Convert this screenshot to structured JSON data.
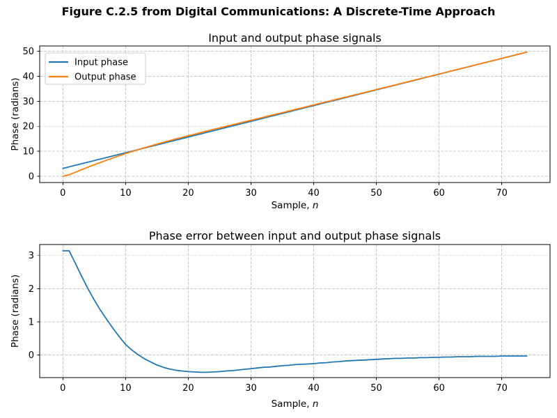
{
  "figure": {
    "suptitle": "Figure C.2.5 from Digital Communications: A Discrete-Time Approach",
    "background": "#ffffff"
  },
  "style": {
    "accent_blue": "#1f77b4",
    "accent_orange": "#ff7f0e",
    "grid_color": "#c8c8c8",
    "axis_color": "#000000"
  },
  "chart_data": [
    {
      "type": "line",
      "title": "Input and output phase signals",
      "xlabel_prefix": "Sample, ",
      "xlabel_var": "n",
      "ylabel": "Phase (radians)",
      "xlim": [
        -3.7,
        77.7
      ],
      "ylim": [
        -2.48,
        52.08
      ],
      "xticks": [
        0,
        10,
        20,
        30,
        40,
        50,
        60,
        70
      ],
      "yticks": [
        0,
        10,
        20,
        30,
        40,
        50
      ],
      "grid": true,
      "legend": {
        "position": "upper-left",
        "entries": [
          "Input phase",
          "Output phase"
        ]
      },
      "x": [
        0,
        1,
        2,
        3,
        4,
        5,
        6,
        7,
        8,
        9,
        10,
        11,
        12,
        13,
        14,
        15,
        16,
        17,
        18,
        19,
        20,
        21,
        22,
        23,
        24,
        25,
        26,
        27,
        28,
        29,
        30,
        31,
        32,
        33,
        34,
        35,
        36,
        37,
        38,
        39,
        40,
        41,
        42,
        43,
        44,
        45,
        46,
        47,
        48,
        49,
        50,
        51,
        52,
        53,
        54,
        55,
        56,
        57,
        58,
        59,
        60,
        61,
        62,
        63,
        64,
        65,
        66,
        67,
        68,
        69,
        70,
        71,
        72,
        73,
        74
      ],
      "series": [
        {
          "name": "Input phase",
          "color": "#1f77b4",
          "values": [
            3.14,
            3.77,
            4.4,
            5.03,
            5.65,
            6.28,
            6.91,
            7.54,
            8.17,
            8.79,
            9.42,
            10.05,
            10.68,
            11.31,
            11.93,
            12.56,
            13.19,
            13.82,
            14.45,
            15.07,
            15.7,
            16.33,
            16.96,
            17.59,
            18.21,
            18.84,
            19.47,
            20.1,
            20.73,
            21.35,
            21.98,
            22.61,
            23.24,
            23.87,
            24.49,
            25.12,
            25.75,
            26.38,
            27.01,
            27.63,
            28.26,
            28.89,
            29.52,
            30.15,
            30.77,
            31.4,
            32.03,
            32.66,
            33.29,
            33.91,
            34.54,
            35.17,
            35.8,
            36.43,
            37.05,
            37.68,
            38.31,
            38.94,
            39.57,
            40.19,
            40.82,
            41.45,
            42.08,
            42.71,
            43.33,
            43.96,
            44.59,
            45.22,
            45.85,
            46.47,
            47.1,
            47.73,
            48.36,
            48.99,
            49.61
          ]
        },
        {
          "name": "Output phase",
          "color": "#ff7f0e",
          "values": [
            0.0,
            0.63,
            1.64,
            2.66,
            3.65,
            4.62,
            5.56,
            6.47,
            7.37,
            8.24,
            9.1,
            9.9,
            10.67,
            11.42,
            12.14,
            12.86,
            13.56,
            14.24,
            14.91,
            15.55,
            16.2,
            16.84,
            17.48,
            18.11,
            18.72,
            19.34,
            19.95,
            20.57,
            21.18,
            21.78,
            22.39,
            23.0,
            23.61,
            24.23,
            24.83,
            25.44,
            26.06,
            26.67,
            27.29,
            27.9,
            28.52,
            29.13,
            29.75,
            30.36,
            30.97,
            31.58,
            32.2,
            32.82,
            33.44,
            34.05,
            34.67,
            35.29,
            35.91,
            36.53,
            37.15,
            37.77,
            38.4,
            39.02,
            39.65,
            40.26,
            40.89,
            41.51,
            42.14,
            42.76,
            43.38,
            44.01,
            44.63,
            45.26,
            45.89,
            46.51,
            47.13,
            47.76,
            48.39,
            49.02,
            49.64
          ]
        }
      ]
    },
    {
      "type": "line",
      "title": "Phase error between input and output phase signals",
      "xlabel_prefix": "Sample, ",
      "xlabel_var": "n",
      "ylabel": "Phase (radians)",
      "xlim": [
        -3.7,
        77.7
      ],
      "ylim": [
        -0.68,
        3.33
      ],
      "xticks": [
        0,
        10,
        20,
        30,
        40,
        50,
        60,
        70
      ],
      "yticks": [
        0,
        1,
        2,
        3
      ],
      "grid": true,
      "x": [
        0,
        1,
        2,
        3,
        4,
        5,
        6,
        7,
        8,
        9,
        10,
        11,
        12,
        13,
        14,
        15,
        16,
        17,
        18,
        19,
        20,
        21,
        22,
        23,
        24,
        25,
        26,
        27,
        28,
        29,
        30,
        31,
        32,
        33,
        34,
        35,
        36,
        37,
        38,
        39,
        40,
        41,
        42,
        43,
        44,
        45,
        46,
        47,
        48,
        49,
        50,
        51,
        52,
        53,
        54,
        55,
        56,
        57,
        58,
        59,
        60,
        61,
        62,
        63,
        64,
        65,
        66,
        67,
        68,
        69,
        70,
        71,
        72,
        73,
        74
      ],
      "series": [
        {
          "name": "Phase error",
          "color": "#1f77b4",
          "values": [
            3.14,
            3.14,
            2.76,
            2.37,
            2.0,
            1.66,
            1.35,
            1.07,
            0.8,
            0.55,
            0.32,
            0.15,
            0.01,
            -0.11,
            -0.21,
            -0.3,
            -0.37,
            -0.42,
            -0.46,
            -0.48,
            -0.5,
            -0.51,
            -0.52,
            -0.52,
            -0.51,
            -0.5,
            -0.48,
            -0.47,
            -0.45,
            -0.43,
            -0.41,
            -0.39,
            -0.37,
            -0.36,
            -0.34,
            -0.32,
            -0.31,
            -0.29,
            -0.28,
            -0.27,
            -0.26,
            -0.24,
            -0.23,
            -0.21,
            -0.2,
            -0.18,
            -0.17,
            -0.16,
            -0.15,
            -0.14,
            -0.13,
            -0.12,
            -0.11,
            -0.1,
            -0.1,
            -0.09,
            -0.09,
            -0.08,
            -0.08,
            -0.07,
            -0.07,
            -0.06,
            -0.06,
            -0.05,
            -0.05,
            -0.05,
            -0.04,
            -0.04,
            -0.04,
            -0.04,
            -0.03,
            -0.03,
            -0.03,
            -0.03,
            -0.03
          ]
        }
      ]
    }
  ]
}
